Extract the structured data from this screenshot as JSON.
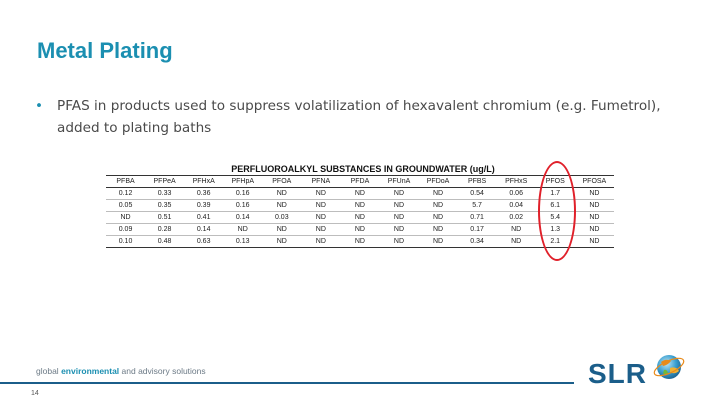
{
  "slide": {
    "title": "Metal Plating",
    "bullet": "PFAS in products used to suppress volatilization of hexavalent chromium (e.g. Fumetrol), added to plating baths",
    "bullet_symbol": "•",
    "page_number": "14"
  },
  "table": {
    "title": "PERFLUOROALKYL SUBSTANCES IN GROUNDWATER (ug/L)",
    "headers": [
      "PFBA",
      "PFPeA",
      "PFHxA",
      "PFHpA",
      "PFOA",
      "PFNA",
      "PFDA",
      "PFUnA",
      "PFDoA",
      "PFBS",
      "PFHxS",
      "PFOS",
      "PFOSA"
    ],
    "rows": [
      [
        "0.12",
        "0.33",
        "0.36",
        "0.16",
        "ND",
        "ND",
        "ND",
        "ND",
        "ND",
        "0.54",
        "0.06",
        "1.7",
        "ND"
      ],
      [
        "0.05",
        "0.35",
        "0.39",
        "0.16",
        "ND",
        "ND",
        "ND",
        "ND",
        "ND",
        "5.7",
        "0.04",
        "6.1",
        "ND"
      ],
      [
        "ND",
        "0.51",
        "0.41",
        "0.14",
        "0.03",
        "ND",
        "ND",
        "ND",
        "ND",
        "0.71",
        "0.02",
        "5.4",
        "ND"
      ],
      [
        "0.09",
        "0.28",
        "0.14",
        "ND",
        "ND",
        "ND",
        "ND",
        "ND",
        "ND",
        "0.17",
        "ND",
        "1.3",
        "ND"
      ],
      [
        "0.10",
        "0.48",
        "0.63",
        "0.13",
        "ND",
        "ND",
        "ND",
        "ND",
        "ND",
        "0.34",
        "ND",
        "2.1",
        "ND"
      ]
    ],
    "highlighted_column": "PFOS",
    "highlight_color": "#e0202a"
  },
  "footer": {
    "tagline_part1": "global ",
    "tagline_bold": "environmental",
    "tagline_part2": " and advisory solutions",
    "logo_text": "SLR",
    "logo_globe_icon": "globe-icon"
  },
  "colors": {
    "title": "#1b8fb1",
    "footer_line": "#1b5e8a"
  }
}
